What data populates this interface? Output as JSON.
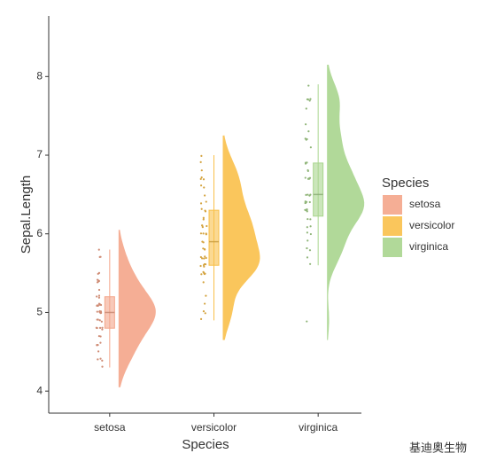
{
  "chart_data": {
    "type": "raincloud",
    "x_label": "Species",
    "y_label": "Sepal.Length",
    "legend_title": "Species",
    "legend_position": "right",
    "watermark": "基迪奥生物",
    "categories": [
      "setosa",
      "versicolor",
      "virginica"
    ],
    "ylim": [
      3.72,
      8.77
    ],
    "yticks": [
      4,
      5,
      6,
      7,
      8
    ],
    "series": [
      {
        "name": "setosa",
        "color": "#f4a58a",
        "min": 4.3,
        "q1": 4.8,
        "median": 5.0,
        "q3": 5.2,
        "max": 5.8,
        "points": [
          5.1,
          4.9,
          4.7,
          4.6,
          5.0,
          5.4,
          4.6,
          5.0,
          4.4,
          4.9,
          5.4,
          4.8,
          4.8,
          4.3,
          5.8,
          5.7,
          5.4,
          5.1,
          5.7,
          5.1,
          5.4,
          5.1,
          4.6,
          5.1,
          4.8,
          5.0,
          5.0,
          5.2,
          5.2,
          4.7,
          4.8,
          5.4,
          5.2,
          5.5,
          4.9,
          5.0,
          5.5,
          4.9,
          4.4,
          5.1,
          5.0,
          4.5,
          4.4,
          5.0,
          5.1,
          4.8,
          5.1,
          4.6,
          5.3,
          5.0
        ]
      },
      {
        "name": "versicolor",
        "color": "#f9c04a",
        "min": 4.9,
        "q1": 5.6,
        "median": 5.9,
        "q3": 6.3,
        "max": 7.0,
        "points": [
          7.0,
          6.4,
          6.9,
          5.5,
          6.5,
          5.7,
          6.3,
          4.9,
          6.6,
          5.2,
          5.0,
          5.9,
          6.0,
          6.1,
          5.6,
          6.7,
          5.6,
          5.8,
          6.2,
          5.6,
          5.9,
          6.1,
          6.3,
          6.1,
          6.4,
          6.6,
          6.8,
          6.7,
          6.0,
          5.7,
          5.5,
          5.5,
          5.8,
          6.0,
          5.4,
          6.0,
          6.7,
          6.3,
          5.6,
          5.5,
          5.5,
          6.1,
          5.8,
          5.0,
          5.6,
          5.7,
          5.7,
          6.2,
          5.1,
          5.7
        ]
      },
      {
        "name": "virginica",
        "color": "#a9d58e",
        "min": 5.6,
        "q1": 6.225,
        "median": 6.5,
        "q3": 6.9,
        "max": 7.9,
        "points": [
          6.3,
          5.8,
          7.1,
          6.3,
          6.5,
          7.6,
          4.9,
          7.3,
          6.7,
          7.2,
          6.5,
          6.4,
          6.8,
          5.7,
          5.8,
          6.4,
          6.5,
          7.7,
          7.7,
          6.0,
          6.9,
          5.6,
          7.7,
          6.3,
          6.7,
          7.2,
          6.2,
          6.1,
          6.4,
          7.2,
          7.4,
          7.9,
          6.4,
          6.3,
          6.1,
          7.7,
          6.3,
          6.4,
          6.0,
          6.9,
          6.7,
          6.9,
          5.8,
          6.8,
          6.7,
          6.7,
          6.3,
          6.5,
          6.2,
          5.9
        ]
      }
    ]
  }
}
